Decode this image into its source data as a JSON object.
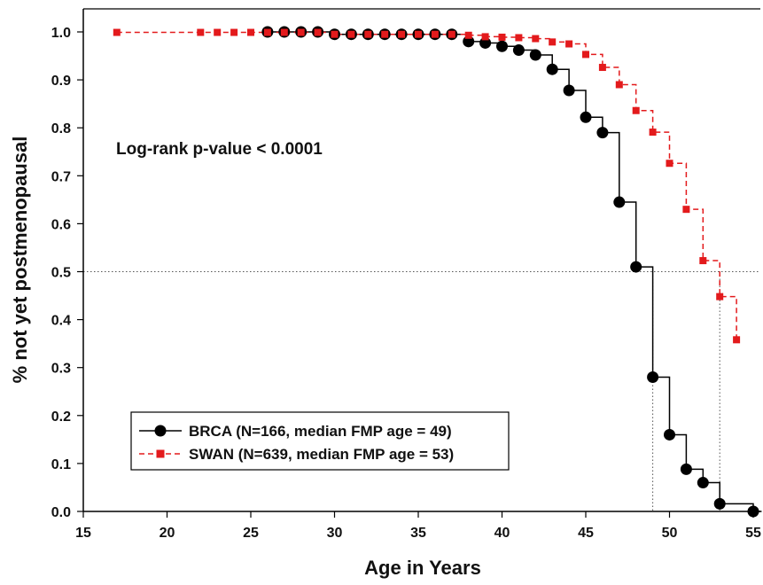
{
  "chart_data": {
    "type": "line",
    "title": "",
    "xlabel": "Age in Years",
    "ylabel": "% not yet postmenopausal",
    "xlim": [
      15,
      56
    ],
    "ylim": [
      0,
      1.0
    ],
    "x_ticks": [
      "15",
      "20",
      "25",
      "30",
      "35",
      "40",
      "45",
      "50",
      "55"
    ],
    "y_ticks": [
      "0.0",
      "0.1",
      "0.2",
      "0.3",
      "0.4",
      "0.5",
      "0.6",
      "0.7",
      "0.8",
      "0.9",
      "1.0"
    ],
    "reference_line_y": 0.5,
    "annotation": "Log-rank p-value < 0.0001",
    "legend_position": "bottom-left",
    "series": [
      {
        "name": "BRCA (N=166, median FMP age = 49)",
        "style": "solid step, black circles",
        "color": "#000000",
        "median_x": 49,
        "steps": [
          [
            26,
            1.0
          ],
          [
            30,
            0.995
          ],
          [
            38,
            0.98
          ],
          [
            39,
            0.977
          ],
          [
            40,
            0.97
          ],
          [
            41,
            0.962
          ],
          [
            42,
            0.952
          ],
          [
            43,
            0.922
          ],
          [
            44,
            0.878
          ],
          [
            45,
            0.822
          ],
          [
            46,
            0.79
          ],
          [
            47,
            0.645
          ],
          [
            48,
            0.51
          ],
          [
            49,
            0.28
          ],
          [
            50,
            0.16
          ],
          [
            51,
            0.088
          ],
          [
            52,
            0.06
          ],
          [
            53,
            0.016
          ],
          [
            55,
            0.0
          ],
          [
            55.5,
            0.0
          ]
        ],
        "markers": [
          [
            26,
            1.0
          ],
          [
            27,
            1.0
          ],
          [
            28,
            1.0
          ],
          [
            29,
            1.0
          ],
          [
            30,
            0.995
          ],
          [
            31,
            0.995
          ],
          [
            32,
            0.995
          ],
          [
            33,
            0.995
          ],
          [
            34,
            0.995
          ],
          [
            35,
            0.995
          ],
          [
            36,
            0.995
          ],
          [
            37,
            0.995
          ],
          [
            38,
            0.98
          ],
          [
            39,
            0.977
          ],
          [
            40,
            0.97
          ],
          [
            41,
            0.962
          ],
          [
            42,
            0.952
          ],
          [
            43,
            0.922
          ],
          [
            44,
            0.878
          ],
          [
            45,
            0.822
          ],
          [
            46,
            0.79
          ],
          [
            47,
            0.645
          ],
          [
            48,
            0.51
          ],
          [
            49,
            0.28
          ],
          [
            50,
            0.16
          ],
          [
            51,
            0.088
          ],
          [
            52,
            0.06
          ],
          [
            53,
            0.016
          ],
          [
            55,
            0.0
          ]
        ]
      },
      {
        "name": "SWAN (N=639, median FMP age = 53)",
        "style": "dashed step, red squares",
        "color": "#e31a1c",
        "median_x": 53,
        "steps": [
          [
            17,
            0.999
          ],
          [
            30,
            0.995
          ],
          [
            38,
            0.993
          ],
          [
            39,
            0.99
          ],
          [
            40,
            0.989
          ],
          [
            41,
            0.988
          ],
          [
            42,
            0.986
          ],
          [
            43,
            0.979
          ],
          [
            44,
            0.975
          ],
          [
            45,
            0.953
          ],
          [
            46,
            0.926
          ],
          [
            47,
            0.89
          ],
          [
            48,
            0.836
          ],
          [
            49,
            0.791
          ],
          [
            50,
            0.726
          ],
          [
            51,
            0.63
          ],
          [
            52,
            0.523
          ],
          [
            53,
            0.448
          ],
          [
            54,
            0.358
          ]
        ],
        "markers": [
          [
            17,
            0.999
          ],
          [
            22,
            0.999
          ],
          [
            23,
            0.999
          ],
          [
            24,
            0.999
          ],
          [
            25,
            0.999
          ],
          [
            26,
            0.999
          ],
          [
            27,
            0.999
          ],
          [
            28,
            0.999
          ],
          [
            29,
            0.999
          ],
          [
            30,
            0.995
          ],
          [
            31,
            0.995
          ],
          [
            32,
            0.995
          ],
          [
            33,
            0.995
          ],
          [
            34,
            0.995
          ],
          [
            35,
            0.995
          ],
          [
            36,
            0.995
          ],
          [
            37,
            0.995
          ],
          [
            38,
            0.993
          ],
          [
            39,
            0.99
          ],
          [
            40,
            0.989
          ],
          [
            41,
            0.988
          ],
          [
            42,
            0.986
          ],
          [
            43,
            0.979
          ],
          [
            44,
            0.975
          ],
          [
            45,
            0.953
          ],
          [
            46,
            0.926
          ],
          [
            47,
            0.89
          ],
          [
            48,
            0.836
          ],
          [
            49,
            0.791
          ],
          [
            50,
            0.726
          ],
          [
            51,
            0.63
          ],
          [
            52,
            0.523
          ],
          [
            53,
            0.448
          ],
          [
            54,
            0.358
          ]
        ]
      }
    ]
  }
}
